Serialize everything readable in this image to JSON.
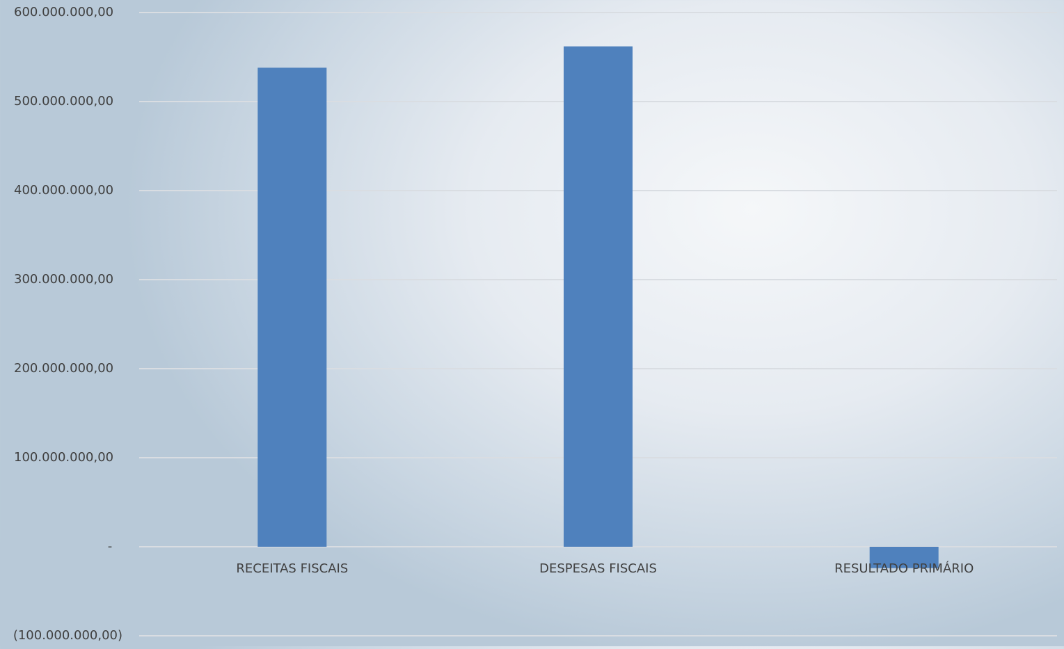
{
  "chart_data": {
    "type": "bar",
    "title": "",
    "xlabel": "",
    "ylabel": "",
    "categories": [
      "RECEITAS FISCAIS",
      "DESPESAS FISCAIS",
      "RESULTADO PRIMÁRIO"
    ],
    "series": [
      {
        "values": [
          538000000,
          562000000,
          -24000000
        ]
      }
    ],
    "ylim": [
      -100000000,
      600000000
    ],
    "yticks": [
      600000000,
      500000000,
      400000000,
      300000000,
      200000000,
      100000000,
      0,
      -100000000
    ],
    "ytick_labels": [
      "600.000.000,00",
      "500.000.000,00",
      "400.000.000,00",
      "300.000.000,00",
      "200.000.000,00",
      "100.000.000,00",
      "-",
      "(100.000.000,00)"
    ],
    "grid": true,
    "legend": "none",
    "colors": {
      "bar": "#4f81bd",
      "grid": "#d9dde2",
      "text": "#404040"
    }
  }
}
